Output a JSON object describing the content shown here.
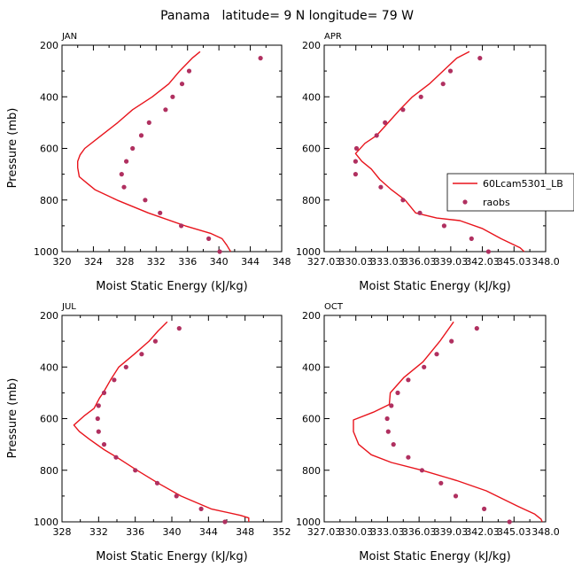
{
  "figure": {
    "title": "Panama   latitude= 9 N longitude= 79 W"
  },
  "colors": {
    "model_line": "#e8141c",
    "obs_dot": "#b03060",
    "axis": "#000000"
  },
  "legend": {
    "entries": [
      {
        "label": "60Lcam5301_LB",
        "style": "line",
        "color": "#e8141c"
      },
      {
        "label": "raobs",
        "style": "dot",
        "color": "#b03060"
      }
    ],
    "placement": "right of APR panel"
  },
  "chart_data": [
    {
      "type": "line",
      "panel": "JAN",
      "title": "JAN",
      "xlabel": "Moist Static Energy (kJ/kg)",
      "ylabel": "Pressure (mb)",
      "xlim": [
        320,
        348
      ],
      "ylim": [
        1000,
        200
      ],
      "xticks": [
        320,
        324,
        328,
        332,
        336,
        340,
        344,
        348
      ],
      "xtick_labels": [
        "320",
        "324",
        "328",
        "332",
        "336",
        "340",
        "344",
        "348"
      ],
      "yticks": [
        200,
        400,
        600,
        800,
        1000
      ],
      "ytick_labels": [
        "200",
        "400",
        "600",
        "800",
        "1000"
      ],
      "series": [
        {
          "name": "60Lcam5301_LB",
          "style": "line",
          "points": [
            [
              337.6,
              225
            ],
            [
              336.6,
              250
            ],
            [
              335.0,
              300
            ],
            [
              333.6,
              350
            ],
            [
              331.5,
              400
            ],
            [
              329.0,
              450
            ],
            [
              327.1,
              500
            ],
            [
              325.0,
              550
            ],
            [
              322.9,
              600
            ],
            [
              322.3,
              625
            ],
            [
              322.0,
              650
            ],
            [
              322.0,
              675
            ],
            [
              322.2,
              710
            ],
            [
              323.2,
              735
            ],
            [
              324.2,
              760
            ],
            [
              327.0,
              800
            ],
            [
              331.0,
              850
            ],
            [
              335.7,
              900
            ],
            [
              339.0,
              930
            ],
            [
              340.4,
              950
            ],
            [
              341.0,
              975
            ],
            [
              341.5,
              1000
            ]
          ]
        },
        {
          "name": "raobs",
          "style": "dot",
          "points": [
            [
              345.3,
              250
            ],
            [
              336.2,
              300
            ],
            [
              335.3,
              350
            ],
            [
              334.1,
              400
            ],
            [
              333.2,
              450
            ],
            [
              331.1,
              500
            ],
            [
              330.1,
              550
            ],
            [
              329.0,
              600
            ],
            [
              328.2,
              650
            ],
            [
              327.6,
              700
            ],
            [
              327.9,
              750
            ],
            [
              330.6,
              800
            ],
            [
              332.5,
              850
            ],
            [
              335.2,
              900
            ],
            [
              338.7,
              950
            ],
            [
              340.1,
              1000
            ]
          ]
        }
      ]
    },
    {
      "type": "line",
      "panel": "APR",
      "title": "APR",
      "xlabel": "Moist Static Energy (kJ/kg)",
      "ylabel": "",
      "xlim": [
        327.03,
        348.03
      ],
      "ylim": [
        1000,
        200
      ],
      "xticks": [
        327.03,
        330.03,
        333.03,
        336.03,
        339.03,
        342.03,
        345.03,
        348.03
      ],
      "xtick_labels": [
        "327.03",
        "330.03",
        "333.03",
        "336.03",
        "339.03",
        "342.03",
        "345.03",
        "348.0"
      ],
      "yticks": [
        200,
        400,
        600,
        800,
        1000
      ],
      "ytick_labels": [
        "200",
        "400",
        "600",
        "800",
        "1000"
      ],
      "series": [
        {
          "name": "60Lcam5301_LB",
          "style": "line",
          "points": [
            [
              340.8,
              225
            ],
            [
              339.6,
              250
            ],
            [
              338.3,
              300
            ],
            [
              337.0,
              350
            ],
            [
              335.4,
              400
            ],
            [
              334.2,
              450
            ],
            [
              333.1,
              500
            ],
            [
              332.0,
              550
            ],
            [
              330.9,
              580
            ],
            [
              330.0,
              620
            ],
            [
              330.6,
              650
            ],
            [
              331.5,
              680
            ],
            [
              332.3,
              720
            ],
            [
              333.4,
              760
            ],
            [
              334.7,
              800
            ],
            [
              335.7,
              850
            ],
            [
              337.7,
              870
            ],
            [
              339.9,
              880
            ],
            [
              342.0,
              910
            ],
            [
              343.8,
              950
            ],
            [
              345.6,
              985
            ],
            [
              346.0,
              1000
            ]
          ]
        },
        {
          "name": "raobs",
          "style": "dot",
          "points": [
            [
              341.8,
              250
            ],
            [
              339.0,
              300
            ],
            [
              338.3,
              350
            ],
            [
              336.2,
              400
            ],
            [
              334.5,
              450
            ],
            [
              332.8,
              500
            ],
            [
              332.0,
              550
            ],
            [
              330.1,
              600
            ],
            [
              330.0,
              650
            ],
            [
              330.0,
              700
            ],
            [
              332.4,
              750
            ],
            [
              334.5,
              800
            ],
            [
              336.1,
              850
            ],
            [
              338.4,
              900
            ],
            [
              341.0,
              950
            ],
            [
              342.6,
              1000
            ]
          ]
        }
      ]
    },
    {
      "type": "line",
      "panel": "JUL",
      "title": "JUL",
      "xlabel": "Moist Static Energy (kJ/kg)",
      "ylabel": "Pressure (mb)",
      "xlim": [
        328,
        352
      ],
      "ylim": [
        1000,
        200
      ],
      "xticks": [
        328,
        332,
        336,
        340,
        344,
        348,
        352
      ],
      "xtick_labels": [
        "328",
        "332",
        "336",
        "340",
        "344",
        "348",
        "352"
      ],
      "yticks": [
        200,
        400,
        600,
        800,
        1000
      ],
      "ytick_labels": [
        "200",
        "400",
        "600",
        "800",
        "1000"
      ],
      "series": [
        {
          "name": "60Lcam5301_LB",
          "style": "line",
          "points": [
            [
              339.5,
              225
            ],
            [
              338.5,
              260
            ],
            [
              337.5,
              300
            ],
            [
              335.9,
              350
            ],
            [
              334.2,
              400
            ],
            [
              333.3,
              450
            ],
            [
              332.5,
              500
            ],
            [
              332.1,
              520
            ],
            [
              331.5,
              560
            ],
            [
              330.4,
              590
            ],
            [
              329.3,
              625
            ],
            [
              329.9,
              650
            ],
            [
              331.0,
              680
            ],
            [
              332.6,
              720
            ],
            [
              334.0,
              750
            ],
            [
              336.2,
              800
            ],
            [
              338.5,
              850
            ],
            [
              341.0,
              900
            ],
            [
              344.3,
              950
            ],
            [
              347.5,
              975
            ],
            [
              348.4,
              985
            ],
            [
              348.4,
              1000
            ]
          ]
        },
        {
          "name": "raobs",
          "style": "dot",
          "points": [
            [
              340.8,
              250
            ],
            [
              338.2,
              300
            ],
            [
              336.7,
              350
            ],
            [
              335.0,
              400
            ],
            [
              333.7,
              450
            ],
            [
              332.6,
              500
            ],
            [
              332.0,
              550
            ],
            [
              331.9,
              600
            ],
            [
              332.0,
              650
            ],
            [
              332.6,
              700
            ],
            [
              333.9,
              750
            ],
            [
              336.0,
              800
            ],
            [
              338.4,
              850
            ],
            [
              340.5,
              900
            ],
            [
              343.2,
              950
            ],
            [
              345.8,
              1000
            ]
          ]
        }
      ]
    },
    {
      "type": "line",
      "panel": "OCT",
      "title": "OCT",
      "xlabel": "Moist Static Energy (kJ/kg)",
      "ylabel": "",
      "xlim": [
        327.03,
        348.03
      ],
      "ylim": [
        1000,
        200
      ],
      "xticks": [
        327.03,
        330.03,
        333.03,
        336.03,
        339.03,
        342.03,
        345.03,
        348.03
      ],
      "xtick_labels": [
        "327.03",
        "330.03",
        "333.03",
        "336.03",
        "339.03",
        "342.03",
        "345.03",
        "348.0"
      ],
      "yticks": [
        200,
        400,
        600,
        800,
        1000
      ],
      "ytick_labels": [
        "200",
        "400",
        "600",
        "800",
        "1000"
      ],
      "series": [
        {
          "name": "60Lcam5301_LB",
          "style": "line",
          "points": [
            [
              339.3,
              225
            ],
            [
              338.0,
              300
            ],
            [
              336.4,
              380
            ],
            [
              334.6,
              440
            ],
            [
              333.3,
              500
            ],
            [
              333.2,
              545
            ],
            [
              331.7,
              575
            ],
            [
              329.8,
              605
            ],
            [
              329.8,
              650
            ],
            [
              330.3,
              700
            ],
            [
              331.5,
              740
            ],
            [
              333.4,
              770
            ],
            [
              336.3,
              800
            ],
            [
              339.6,
              840
            ],
            [
              342.4,
              880
            ],
            [
              345.4,
              940
            ],
            [
              347.0,
              970
            ],
            [
              347.6,
              990
            ],
            [
              347.7,
              1000
            ]
          ]
        },
        {
          "name": "raobs",
          "style": "dot",
          "points": [
            [
              341.5,
              250
            ],
            [
              339.1,
              300
            ],
            [
              337.7,
              350
            ],
            [
              336.5,
              400
            ],
            [
              335.0,
              450
            ],
            [
              334.0,
              500
            ],
            [
              333.4,
              550
            ],
            [
              333.0,
              600
            ],
            [
              333.1,
              650
            ],
            [
              333.6,
              700
            ],
            [
              335.0,
              750
            ],
            [
              336.3,
              800
            ],
            [
              338.1,
              850
            ],
            [
              339.5,
              900
            ],
            [
              342.2,
              950
            ],
            [
              344.6,
              1000
            ]
          ]
        }
      ]
    }
  ]
}
